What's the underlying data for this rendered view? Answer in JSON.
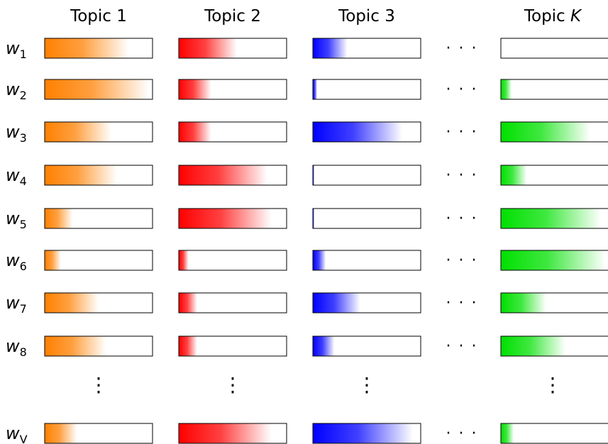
{
  "topics": [
    {
      "label": "Topic 1",
      "label_main": "Topic",
      "label_index": "1",
      "index_italic": false,
      "color": "#ff8000"
    },
    {
      "label": "Topic 2",
      "label_main": "Topic",
      "label_index": "2",
      "index_italic": false,
      "color": "#ff0000"
    },
    {
      "label": "Topic 3",
      "label_main": "Topic",
      "label_index": "3",
      "index_italic": false,
      "color": "#0000ff"
    },
    {
      "label": "Topic K",
      "label_main": "Topic",
      "label_index": "K",
      "index_italic": true,
      "color": "#00e000"
    }
  ],
  "gap_symbol": "· · ·",
  "words": [
    {
      "label": "w1",
      "base": "w",
      "sub": "1",
      "fill": [
        0.78,
        0.54,
        0.32,
        0.0
      ]
    },
    {
      "label": "w2",
      "base": "w",
      "sub": "2",
      "fill": [
        0.97,
        0.3,
        0.04,
        0.1
      ]
    },
    {
      "label": "w3",
      "base": "w",
      "sub": "3",
      "fill": [
        0.62,
        0.3,
        0.83,
        0.83
      ]
    },
    {
      "label": "w4",
      "base": "w",
      "sub": "4",
      "fill": [
        0.67,
        0.82,
        0.01,
        0.24
      ]
    },
    {
      "label": "w5",
      "base": "w",
      "sub": "5",
      "fill": [
        0.26,
        0.86,
        0.01,
        0.93
      ]
    },
    {
      "label": "w6",
      "base": "w",
      "sub": "6",
      "fill": [
        0.15,
        0.09,
        0.12,
        0.97
      ]
    },
    {
      "label": "w7",
      "base": "w",
      "sub": "7",
      "fill": [
        0.5,
        0.17,
        0.44,
        0.42
      ]
    },
    {
      "label": "w8",
      "base": "w",
      "sub": "8",
      "fill": [
        0.57,
        0.17,
        0.2,
        0.6
      ]
    },
    {
      "label": "wV",
      "base": "w",
      "sub": "V",
      "fill": [
        0.3,
        0.86,
        0.93,
        0.12
      ]
    }
  ],
  "vertical_gap_symbol": "⋮"
}
